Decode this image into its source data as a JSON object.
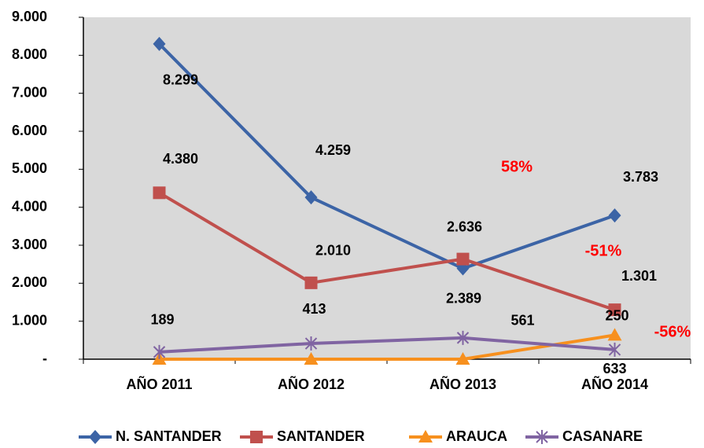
{
  "chart_data": {
    "type": "line",
    "categories": [
      "AÑO 2011",
      "AÑO 2012",
      "AÑO 2013",
      "AÑO 2014"
    ],
    "series": [
      {
        "name": "N. SANTANDER",
        "color": "#3c64a6",
        "values": [
          8299,
          4259,
          2389,
          3783
        ],
        "value_labels": [
          "8.299",
          "4.259",
          "2.389",
          "3.783"
        ]
      },
      {
        "name": "SANTANDER",
        "color": "#c0504d",
        "values": [
          4380,
          2010,
          2636,
          1301
        ],
        "value_labels": [
          "4.380",
          "2.010",
          "2.636",
          "1.301"
        ]
      },
      {
        "name": "ARAUCA",
        "color": "#f7901e",
        "values": [
          0,
          0,
          0,
          633
        ],
        "value_labels": [
          null,
          null,
          null,
          "633"
        ]
      },
      {
        "name": "CASANARE",
        "color": "#8064a2",
        "values": [
          189,
          413,
          561,
          250
        ],
        "value_labels": [
          "189",
          "413",
          "561",
          "250"
        ]
      }
    ],
    "ylim": [
      0,
      9000
    ],
    "yticks": [
      {
        "value": 0,
        "label": "-"
      },
      {
        "value": 1000,
        "label": "1.000"
      },
      {
        "value": 2000,
        "label": "2.000"
      },
      {
        "value": 3000,
        "label": "3.000"
      },
      {
        "value": 4000,
        "label": "4.000"
      },
      {
        "value": 5000,
        "label": "5.000"
      },
      {
        "value": 6000,
        "label": "6.000"
      },
      {
        "value": 7000,
        "label": "7.000"
      },
      {
        "value": 8000,
        "label": "8.000"
      },
      {
        "value": 9000,
        "label": "9.000"
      }
    ],
    "annotations": [
      "58%",
      "-51%",
      "-56%"
    ],
    "grid": false,
    "legend": "bottom"
  }
}
